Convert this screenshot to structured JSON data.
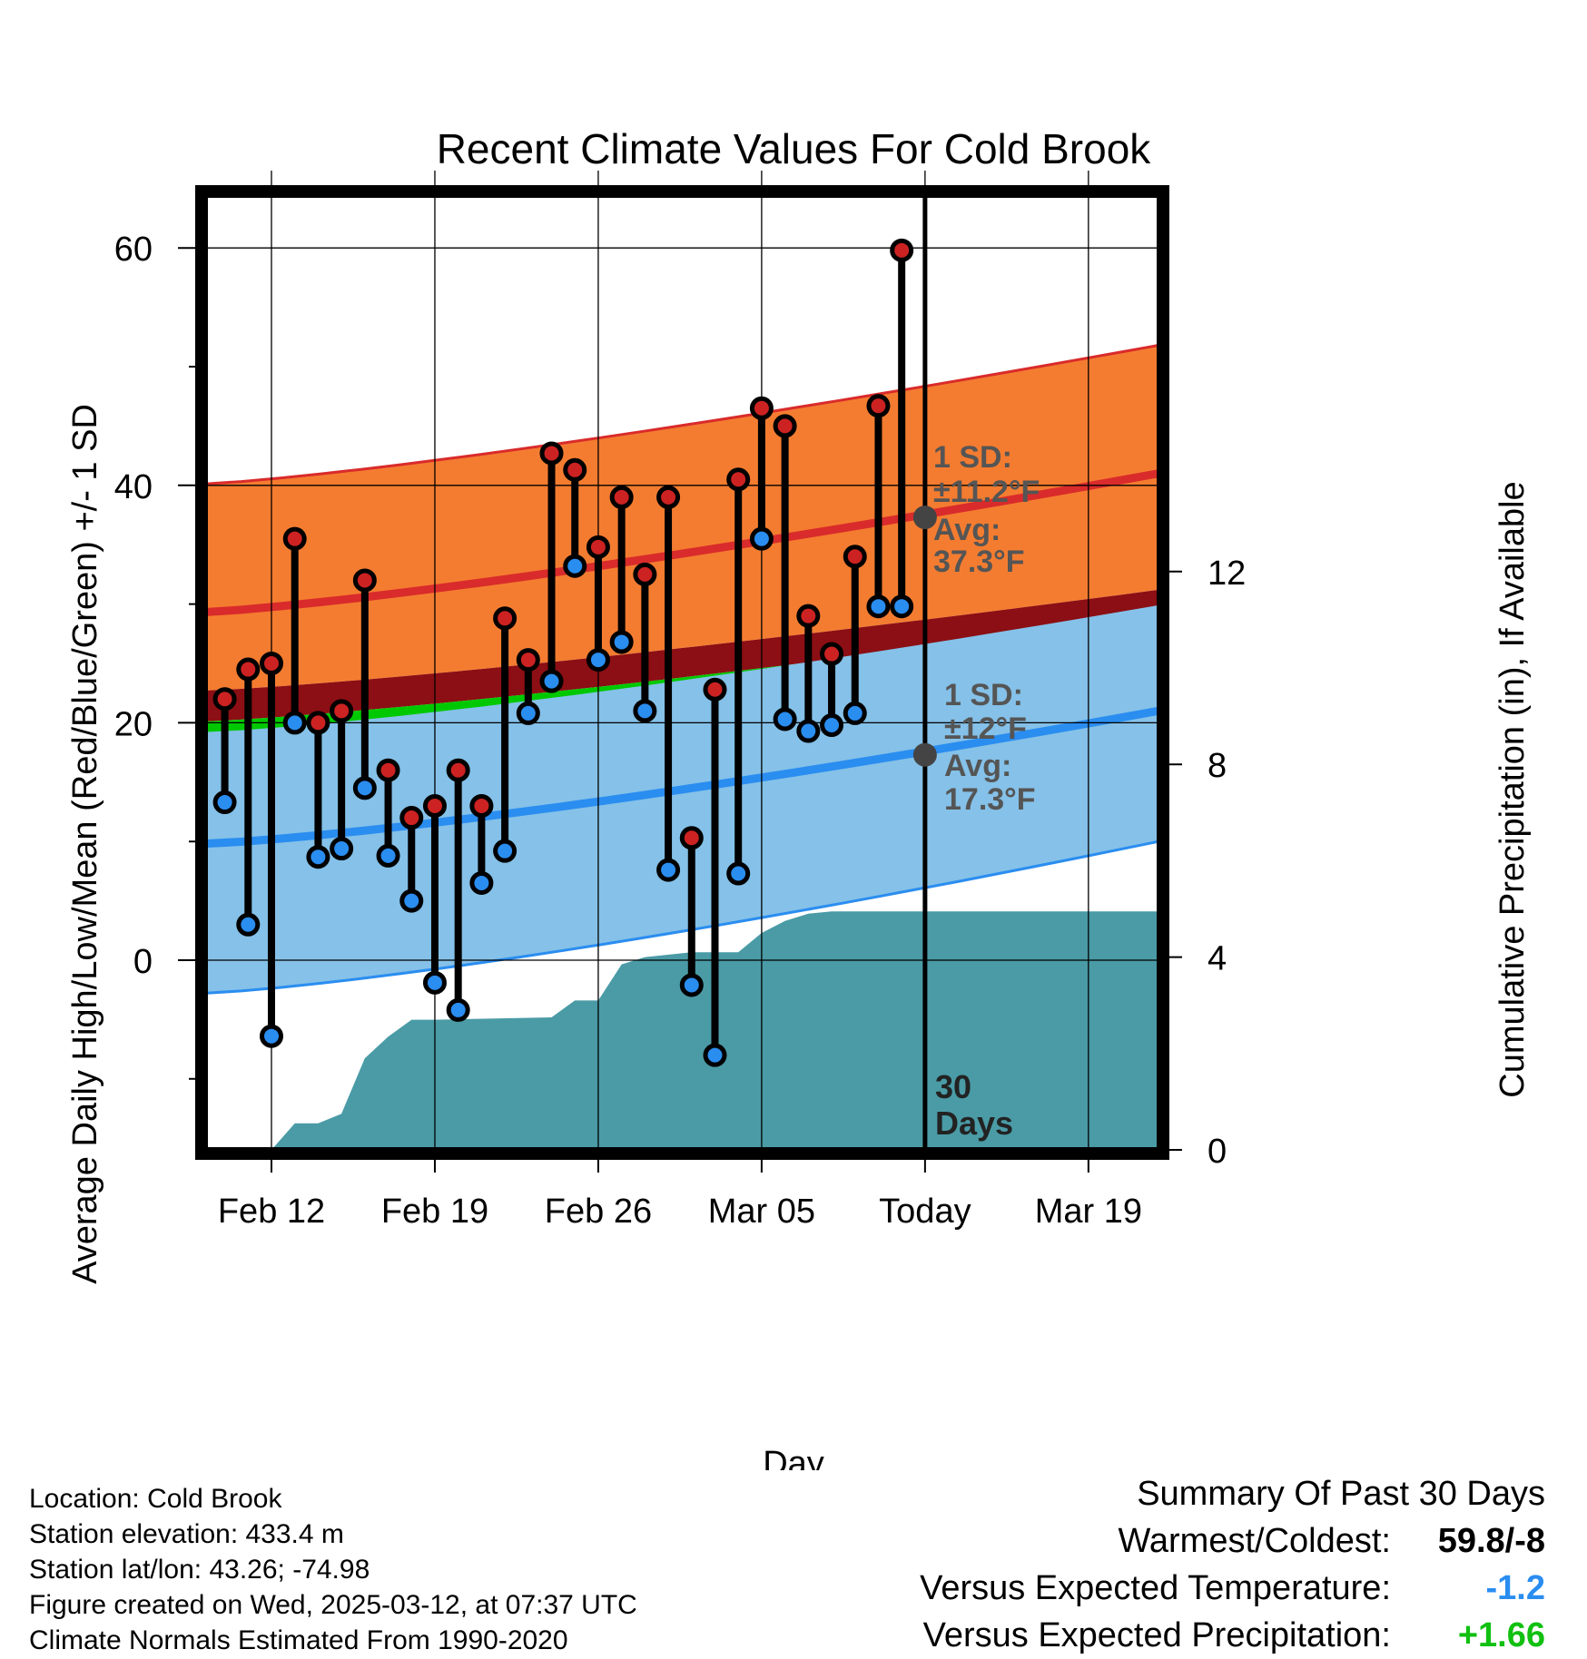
{
  "chart_data": {
    "type": "line",
    "title": "Recent Climate Values For Cold Brook",
    "xlabel": "Day",
    "ylabel": "Average Daily High/Low/Mean (Red/Blue/Green) +/- 1 SD",
    "y2label": "Cumulative Precipitation (in), If Available",
    "x_tick_labels": [
      "Feb 12",
      "Feb 19",
      "Feb 26",
      "Mar 05",
      "Today",
      "Mar 19"
    ],
    "x_range_days": [
      "Feb 09",
      "Mar 22"
    ],
    "y_ticks": [
      0,
      20,
      40,
      60
    ],
    "ylim": [
      -15.5,
      65
    ],
    "y2_ticks": [
      0,
      4,
      8,
      12
    ],
    "y2lim": [
      0,
      19.1
    ],
    "grid": true,
    "colors": {
      "high_band": "#f47c30",
      "high_line": "#d92b2b",
      "mean_band": "#8b0f14",
      "mean_green": "#00c800",
      "low_band": "#85c1e8",
      "low_line": "#2a8df0",
      "precip": "#4a9ba6",
      "high_point": "#cc2222",
      "low_point": "#2a8df0",
      "today_point": "#444444"
    },
    "normals": {
      "days": [
        "Feb 09",
        "Mar 22"
      ],
      "high_avg": [
        29.3,
        41.0
      ],
      "high_plus_sd": [
        40.1,
        51.8
      ],
      "low_avg": [
        9.8,
        21.0
      ],
      "low_plus_sd": [
        22.7,
        31.2
      ],
      "low_minus_sd": [
        -2.8,
        10.0
      ],
      "mean_upper": [
        22.7,
        31.2
      ],
      "mean_lower": [
        20.1,
        28.9
      ]
    },
    "observations": {
      "dates": [
        "Feb 10",
        "Feb 11",
        "Feb 12",
        "Feb 13",
        "Feb 14",
        "Feb 15",
        "Feb 16",
        "Feb 17",
        "Feb 18",
        "Feb 19",
        "Feb 20",
        "Feb 21",
        "Feb 22",
        "Feb 23",
        "Feb 24",
        "Feb 25",
        "Feb 26",
        "Feb 27",
        "Feb 28",
        "Mar 01",
        "Mar 02",
        "Mar 03",
        "Mar 04",
        "Mar 05",
        "Mar 06",
        "Mar 07",
        "Mar 08",
        "Mar 09",
        "Mar 10",
        "Mar 11"
      ],
      "highs": [
        22,
        24.5,
        25,
        35.5,
        20,
        21,
        32,
        16,
        12,
        13,
        16,
        13,
        28.8,
        25.3,
        42.7,
        41.3,
        34.8,
        39,
        32.5,
        39,
        10.3,
        22.8,
        40.5,
        46.5,
        45,
        29,
        25.8,
        34,
        46.7,
        59.8
      ],
      "lows": [
        13.3,
        3,
        -6.4,
        20,
        8.7,
        9.4,
        14.5,
        8.8,
        5,
        -1.9,
        -4.2,
        6.5,
        9.2,
        20.8,
        23.5,
        33.2,
        25.3,
        26.8,
        21,
        7.6,
        -2.1,
        -8,
        7.3,
        35.5,
        20.3,
        19.3,
        19.8,
        20.8,
        29.8,
        29.8
      ]
    },
    "precipitation": {
      "dates": [
        "Feb 12",
        "Feb 13",
        "Feb 14",
        "Feb 15",
        "Feb 16",
        "Feb 17",
        "Feb 18",
        "Feb 19",
        "Feb 24",
        "Feb 25",
        "Feb 26",
        "Feb 27",
        "Feb 28",
        "Mar 02",
        "Mar 03",
        "Mar 04",
        "Mar 05",
        "Mar 06",
        "Mar 07",
        "Mar 08",
        "Mar 22"
      ],
      "cumulative": [
        0,
        0.55,
        0.55,
        0.75,
        1.9,
        2.35,
        2.7,
        2.7,
        2.75,
        3.1,
        3.1,
        3.85,
        4.0,
        4.1,
        4.1,
        4.1,
        4.5,
        4.75,
        4.9,
        4.95,
        4.95
      ]
    },
    "today": {
      "label": "Today",
      "days_label": [
        "30",
        "Days"
      ],
      "high_avg_value": 37.3,
      "low_avg_value": 17.3,
      "high_annot": [
        "1 SD:",
        "±11.2°F",
        "Avg:",
        "37.3°F"
      ],
      "low_annot": [
        "1 SD:",
        "±12°F",
        "Avg:",
        "17.3°F"
      ]
    }
  },
  "info": {
    "location": "Location: Cold Brook",
    "elevation": "Station elevation: 433.4 m",
    "latlon": "Station lat/lon: 43.26; -74.98",
    "created": "Figure created on Wed, 2025-03-12, at 07:37 UTC",
    "normals": "Climate Normals Estimated From 1990-2020"
  },
  "summary": {
    "title": "Summary Of Past 30 Days",
    "warmest_label": "Warmest/Coldest:",
    "warmest_value": "59.8/-8",
    "temp_label": "Versus Expected Temperature:",
    "temp_value": "-1.2",
    "temp_color": "#2a8df0",
    "precip_label": "Versus Expected Precipitation:",
    "precip_value": "+1.66",
    "precip_color": "#11c011"
  }
}
